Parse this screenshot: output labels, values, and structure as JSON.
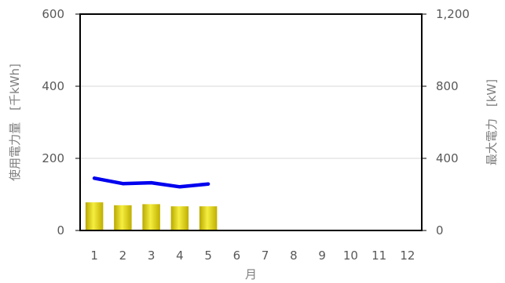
{
  "chart_data": {
    "type": "bar",
    "categories": [
      "1",
      "2",
      "3",
      "4",
      "5",
      "6",
      "7",
      "8",
      "9",
      "10",
      "11",
      "12"
    ],
    "xlabel": "月",
    "ylabel": "使用電力量　[千kWh]",
    "y2label": "最大電力　[kW]",
    "ylim": [
      0,
      600
    ],
    "y2lim": [
      0,
      1200
    ],
    "yticks": [
      "0",
      "200",
      "400",
      "600"
    ],
    "y2ticks": [
      "0",
      "400",
      "800",
      "1,200"
    ],
    "grid": true,
    "legend": "none",
    "series": [
      {
        "type": "bar",
        "axis": "left",
        "color": "#d4c400",
        "values": [
          78,
          70,
          73,
          67,
          67,
          null,
          null,
          null,
          null,
          null,
          null,
          null
        ]
      },
      {
        "type": "line",
        "axis": "right",
        "color": "#0000ee",
        "values": [
          290,
          260,
          265,
          242,
          258,
          null,
          null,
          null,
          null,
          null,
          null,
          null
        ]
      }
    ]
  }
}
